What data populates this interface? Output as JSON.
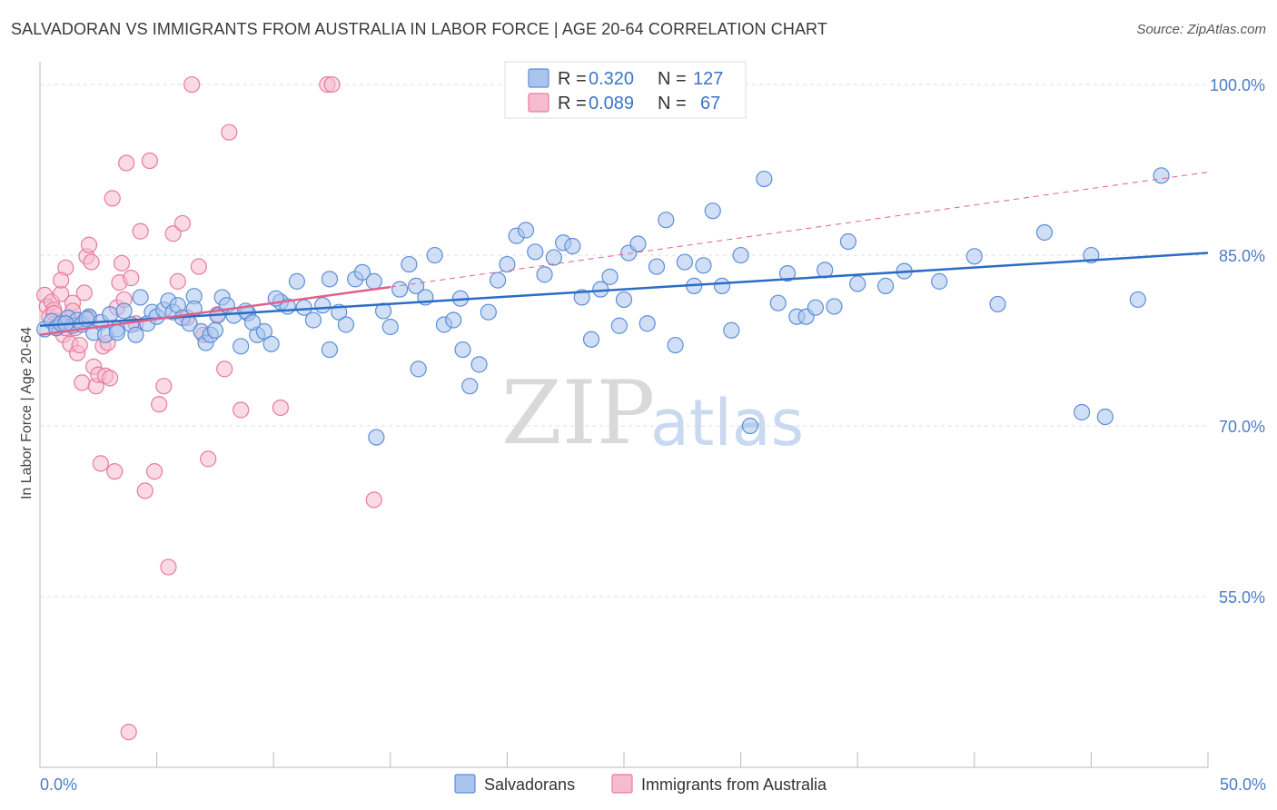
{
  "title": "SALVADORAN VS IMMIGRANTS FROM AUSTRALIA IN LABOR FORCE | AGE 20-64 CORRELATION CHART",
  "source": "Source: ZipAtlas.com",
  "watermark": {
    "zip": "ZIP",
    "atlas": "atlas"
  },
  "colors": {
    "blue": "#5b8fd6",
    "blue_fill": "#a9c5ee",
    "pink": "#e87aa0",
    "pink_fill": "#f5bcd0",
    "blue_line": "#2b6cc4",
    "pink_line": "#e0608d",
    "tick": "#4a7cc9"
  },
  "legend": {
    "r_label": "R =",
    "n_label": "N =",
    "rows": [
      {
        "series": "Salvadorans",
        "r": "0.320",
        "n": "127"
      },
      {
        "series": "Immigrants from Australia",
        "r": "0.089",
        "n": "67"
      }
    ]
  },
  "chart_data": {
    "type": "scatter",
    "ylabel": "In Labor Force | Age 20-64",
    "xlabel": "",
    "xlim": [
      0,
      50
    ],
    "ylim": [
      40,
      102
    ],
    "x_ticks": [
      "0.0%",
      "50.0%"
    ],
    "y_ticks": [
      {
        "value": 55,
        "label": "55.0%"
      },
      {
        "value": 70,
        "label": "70.0%"
      },
      {
        "value": 85,
        "label": "85.0%"
      },
      {
        "value": 100,
        "label": "100.0%"
      }
    ],
    "grid": "horizontal dashed",
    "series": [
      {
        "name": "Salvadorans",
        "trend": {
          "x0": 0,
          "y0": 78.8,
          "x1": 50,
          "y1": 85.2
        },
        "points": [
          [
            0.2,
            78.5
          ],
          [
            0.5,
            79.2
          ],
          [
            0.7,
            78.6
          ],
          [
            0.9,
            79.0
          ],
          [
            1.2,
            79.5
          ],
          [
            1.4,
            78.8
          ],
          [
            1.6,
            79.3
          ],
          [
            1.8,
            78.9
          ],
          [
            2.1,
            79.6
          ],
          [
            2.3,
            78.2
          ],
          [
            2.6,
            79.1
          ],
          [
            2.8,
            78.0
          ],
          [
            3.0,
            79.8
          ],
          [
            3.3,
            78.5
          ],
          [
            3.6,
            80.1
          ],
          [
            3.9,
            78.9
          ],
          [
            4.1,
            78.0
          ],
          [
            4.3,
            81.3
          ],
          [
            4.6,
            79.0
          ],
          [
            4.8,
            80.0
          ],
          [
            5.0,
            79.6
          ],
          [
            5.3,
            80.2
          ],
          [
            5.5,
            81.0
          ],
          [
            5.7,
            80.0
          ],
          [
            5.9,
            80.6
          ],
          [
            6.1,
            79.5
          ],
          [
            6.4,
            79.0
          ],
          [
            6.6,
            81.4
          ],
          [
            6.9,
            78.3
          ],
          [
            7.1,
            77.3
          ],
          [
            7.3,
            78.0
          ],
          [
            7.6,
            79.7
          ],
          [
            7.8,
            81.3
          ],
          [
            8.0,
            80.6
          ],
          [
            8.3,
            79.7
          ],
          [
            8.6,
            77.0
          ],
          [
            8.9,
            79.9
          ],
          [
            9.3,
            78.0
          ],
          [
            9.6,
            78.3
          ],
          [
            9.9,
            77.2
          ],
          [
            10.3,
            80.9
          ],
          [
            10.6,
            80.5
          ],
          [
            11.0,
            82.7
          ],
          [
            11.3,
            80.4
          ],
          [
            11.7,
            79.3
          ],
          [
            12.1,
            80.6
          ],
          [
            12.4,
            76.7
          ],
          [
            12.8,
            80.0
          ],
          [
            13.1,
            78.9
          ],
          [
            13.5,
            82.9
          ],
          [
            13.8,
            83.5
          ],
          [
            14.3,
            82.7
          ],
          [
            14.7,
            80.1
          ],
          [
            15.0,
            78.7
          ],
          [
            15.4,
            82.0
          ],
          [
            15.8,
            84.2
          ],
          [
            16.1,
            82.3
          ],
          [
            16.5,
            81.3
          ],
          [
            16.9,
            85.0
          ],
          [
            17.3,
            78.9
          ],
          [
            17.7,
            79.3
          ],
          [
            18.1,
            76.7
          ],
          [
            18.4,
            73.5
          ],
          [
            18.8,
            75.4
          ],
          [
            19.2,
            80.0
          ],
          [
            19.6,
            82.8
          ],
          [
            20.0,
            84.2
          ],
          [
            20.4,
            86.7
          ],
          [
            20.8,
            87.2
          ],
          [
            21.2,
            85.3
          ],
          [
            21.6,
            83.3
          ],
          [
            22.0,
            84.8
          ],
          [
            22.4,
            86.1
          ],
          [
            22.8,
            85.8
          ],
          [
            23.2,
            81.3
          ],
          [
            23.6,
            77.6
          ],
          [
            24.0,
            82.0
          ],
          [
            24.4,
            83.1
          ],
          [
            24.8,
            78.8
          ],
          [
            25.2,
            85.2
          ],
          [
            25.6,
            86.0
          ],
          [
            26.0,
            79.0
          ],
          [
            26.4,
            84.0
          ],
          [
            26.8,
            88.1
          ],
          [
            27.2,
            77.1
          ],
          [
            27.6,
            84.4
          ],
          [
            28.0,
            82.3
          ],
          [
            28.4,
            84.1
          ],
          [
            28.8,
            88.9
          ],
          [
            29.2,
            82.3
          ],
          [
            29.6,
            78.4
          ],
          [
            30.0,
            85.0
          ],
          [
            30.4,
            70.0
          ],
          [
            31.0,
            91.7
          ],
          [
            31.6,
            80.8
          ],
          [
            32.0,
            83.4
          ],
          [
            32.4,
            79.6
          ],
          [
            32.8,
            79.6
          ],
          [
            33.2,
            80.4
          ],
          [
            33.6,
            83.7
          ],
          [
            34.0,
            80.5
          ],
          [
            34.6,
            86.2
          ],
          [
            35.0,
            82.5
          ],
          [
            36.2,
            82.3
          ],
          [
            37.0,
            83.6
          ],
          [
            38.5,
            82.7
          ],
          [
            40.0,
            84.9
          ],
          [
            41.0,
            80.7
          ],
          [
            43.0,
            87.0
          ],
          [
            44.6,
            71.2
          ],
          [
            45.0,
            85.0
          ],
          [
            45.6,
            70.8
          ],
          [
            47.0,
            81.1
          ],
          [
            48.0,
            92.0
          ],
          [
            14.4,
            69.0
          ],
          [
            16.2,
            75.0
          ],
          [
            12.4,
            82.9
          ],
          [
            10.1,
            81.2
          ],
          [
            6.6,
            80.3
          ],
          [
            3.3,
            78.2
          ],
          [
            1.1,
            79.0
          ],
          [
            2.0,
            79.4
          ],
          [
            25.0,
            81.1
          ],
          [
            18.0,
            81.2
          ],
          [
            7.5,
            78.4
          ],
          [
            8.8,
            80.1
          ],
          [
            9.1,
            79.1
          ]
        ]
      },
      {
        "name": "Immigrants from Australia",
        "trend": {
          "x0": 0,
          "y0": 78.0,
          "x1": 15,
          "y1": 82.2,
          "dash_x1": 50,
          "dash_y1": 92.3
        },
        "points": [
          [
            0.2,
            81.5
          ],
          [
            0.3,
            80.5
          ],
          [
            0.4,
            79.6
          ],
          [
            0.5,
            80.9
          ],
          [
            0.6,
            80.2
          ],
          [
            0.7,
            78.7
          ],
          [
            0.8,
            79.2
          ],
          [
            0.9,
            81.6
          ],
          [
            1.0,
            78.0
          ],
          [
            1.1,
            83.9
          ],
          [
            1.2,
            79.5
          ],
          [
            1.3,
            77.2
          ],
          [
            1.4,
            80.8
          ],
          [
            1.5,
            78.6
          ],
          [
            1.6,
            76.4
          ],
          [
            1.7,
            77.1
          ],
          [
            1.8,
            73.8
          ],
          [
            1.9,
            81.7
          ],
          [
            2.0,
            84.9
          ],
          [
            2.1,
            85.9
          ],
          [
            2.2,
            84.4
          ],
          [
            2.3,
            75.2
          ],
          [
            2.4,
            73.5
          ],
          [
            2.5,
            74.5
          ],
          [
            2.6,
            66.7
          ],
          [
            2.7,
            77.0
          ],
          [
            2.8,
            74.4
          ],
          [
            2.9,
            77.3
          ],
          [
            3.0,
            74.2
          ],
          [
            3.1,
            90.0
          ],
          [
            3.2,
            66.0
          ],
          [
            3.3,
            80.4
          ],
          [
            3.4,
            82.6
          ],
          [
            3.5,
            84.3
          ],
          [
            3.6,
            81.1
          ],
          [
            3.7,
            93.1
          ],
          [
            3.8,
            43.1
          ],
          [
            3.9,
            83.0
          ],
          [
            4.1,
            79.0
          ],
          [
            4.3,
            87.1
          ],
          [
            4.5,
            64.3
          ],
          [
            4.7,
            93.3
          ],
          [
            4.9,
            66.0
          ],
          [
            5.1,
            71.9
          ],
          [
            5.3,
            73.5
          ],
          [
            5.5,
            57.6
          ],
          [
            5.7,
            86.9
          ],
          [
            5.9,
            82.7
          ],
          [
            6.1,
            87.8
          ],
          [
            6.3,
            79.5
          ],
          [
            6.5,
            100.0
          ],
          [
            6.8,
            84.0
          ],
          [
            7.0,
            78.0
          ],
          [
            7.2,
            67.1
          ],
          [
            7.6,
            79.8
          ],
          [
            7.9,
            75.0
          ],
          [
            8.1,
            95.8
          ],
          [
            8.6,
            71.4
          ],
          [
            10.3,
            71.6
          ],
          [
            12.3,
            100.0
          ],
          [
            12.5,
            100.0
          ],
          [
            14.3,
            63.5
          ],
          [
            1.4,
            80.1
          ],
          [
            0.9,
            82.8
          ],
          [
            2.1,
            79.5
          ],
          [
            1.1,
            78.6
          ],
          [
            0.6,
            79.9
          ]
        ]
      }
    ]
  },
  "bottom_legend": [
    "Salvadorans",
    "Immigrants from Australia"
  ]
}
